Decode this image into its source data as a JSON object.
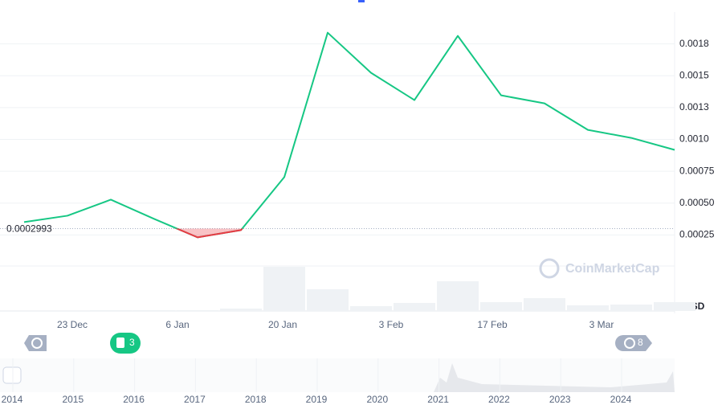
{
  "chart_data": {
    "type": "line",
    "currency": "USD",
    "watermark": "CoinMarketCap",
    "color_up": "#16c784",
    "color_down": "#ea3943",
    "reference": {
      "value": 0.0002993,
      "label": "0.0002993"
    },
    "values": [
      0.000351,
      0.000401,
      0.000527,
      0.000376,
      0.000231,
      0.000288,
      0.000704,
      0.001838,
      0.001523,
      0.001309,
      0.001813,
      0.001346,
      0.001283,
      0.001075,
      0.001012,
      0.000918
    ],
    "volume": [
      null,
      null,
      1,
      1,
      1,
      3,
      55,
      27,
      6,
      10,
      37,
      11,
      16,
      7,
      8,
      11
    ],
    "x_labels": [
      "23 Dec",
      "6 Jan",
      "20 Jan",
      "3 Feb",
      "17 Feb",
      "3 Mar"
    ],
    "ylim": [
      0,
      0.002
    ],
    "yticks": [
      0.00025,
      {
        "value": 0.0005,
        "label": "0.00050"
      },
      0.00075,
      {
        "value": 0.001,
        "label": "0.0010"
      },
      {
        "value": 0.00125,
        "label": "0.0013"
      },
      0.0015,
      {
        "value": 0.00175,
        "label": "0.0018"
      }
    ],
    "grid": true,
    "badges": {
      "news": "3",
      "events": "8"
    },
    "navigator_years": [
      "2014",
      "2015",
      "2016",
      "2017",
      "2018",
      "2019",
      "2020",
      "2021",
      "2022",
      "2023",
      "2024"
    ]
  }
}
